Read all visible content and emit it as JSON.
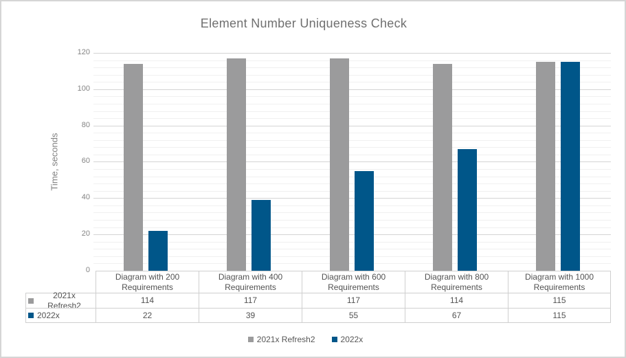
{
  "chart_data": {
    "type": "bar",
    "title": "Element Number Uniqueness Check",
    "ylabel": "Time, seconds",
    "categories": [
      "Diagram with 200 Requirements",
      "Diagram with 400 Requirements",
      "Diagram with 600 Requirements",
      "Diagram with 800 Requirements",
      "Diagram with 1000 Requirements"
    ],
    "series": [
      {
        "name": "2021x Refresh2",
        "color": "#9b9b9c",
        "values": [
          114,
          117,
          117,
          114,
          115
        ]
      },
      {
        "name": "2022x",
        "color": "#005689",
        "values": [
          22,
          39,
          55,
          67,
          115
        ]
      }
    ],
    "ylim": [
      0,
      120
    ],
    "y_major_unit": 20,
    "y_minor_unit": 4,
    "y_ticks": [
      0,
      20,
      40,
      60,
      80,
      100,
      120
    ],
    "grid": "horizontal major and minor",
    "legend_position": "bottom",
    "data_table_shown": true
  },
  "colors": {
    "background": "#ffffff",
    "frame_border": "#d5d5d5",
    "title_text": "#6f6f6f",
    "axis_text": "#848484",
    "table_text": "#525252",
    "table_border": "#cfcfcf",
    "gridline_major": "#d4d4d4",
    "gridline_minor": "#f0f0f0"
  }
}
